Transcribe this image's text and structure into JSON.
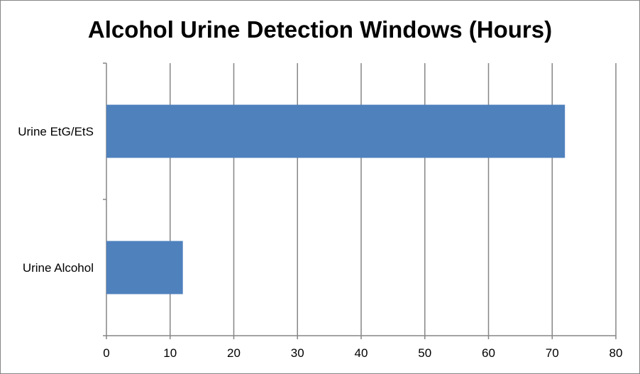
{
  "chart_data": {
    "type": "bar",
    "orientation": "horizontal",
    "title": "Alcohol Urine Detection Windows (Hours)",
    "categories": [
      "Urine EtG/EtS",
      "Urine Alcohol"
    ],
    "values": [
      72,
      12
    ],
    "xlim": [
      0,
      80
    ],
    "x_ticks": [
      "0",
      "10",
      "20",
      "30",
      "40",
      "50",
      "60",
      "70",
      "80"
    ],
    "grid": "vertical",
    "legend": "none",
    "colors": {
      "bar": "#4F81BD",
      "grid": "#868686",
      "axis": "#868686",
      "border": "#868686"
    }
  }
}
